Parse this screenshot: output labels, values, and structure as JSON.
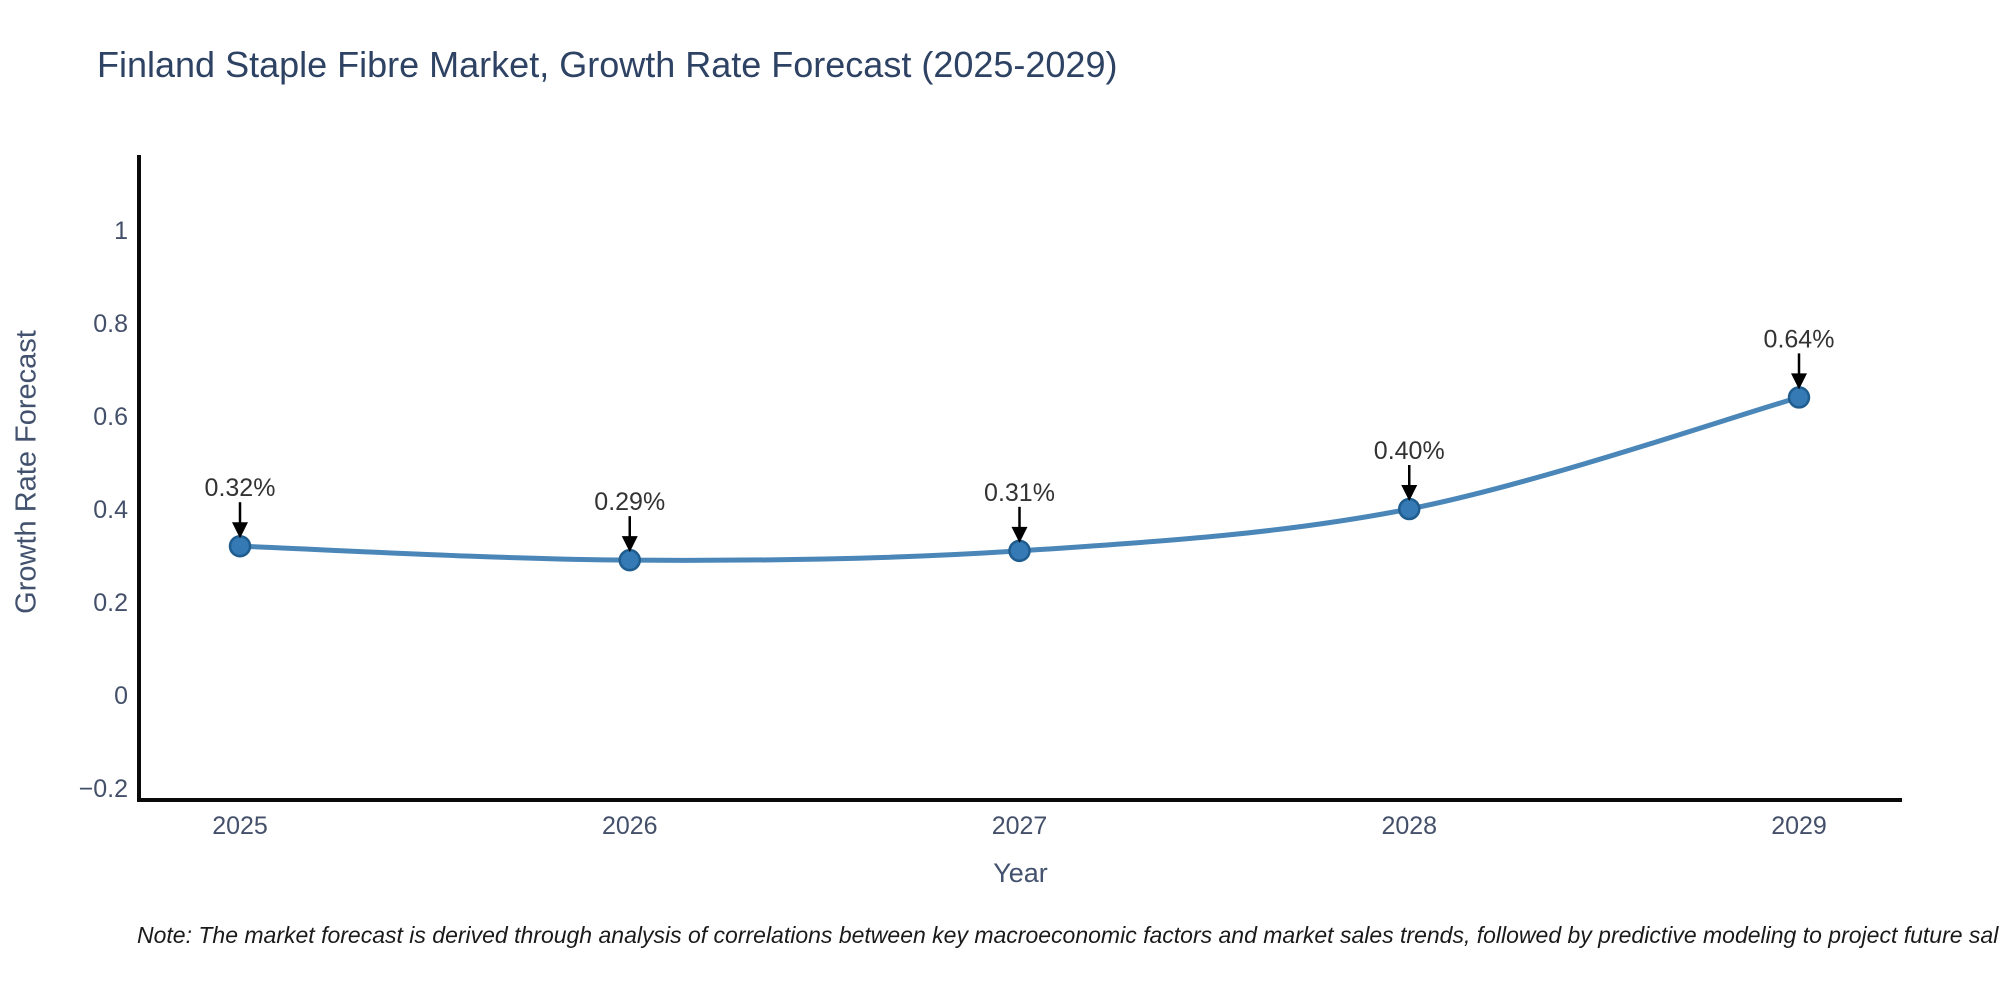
{
  "title": "Finland Staple Fibre Market, Growth Rate Forecast (2025-2029)",
  "note": "Note: The market forecast is derived through analysis of correlations between key macroeconomic factors and market sales trends, followed by predictive modeling to project future sal",
  "chart_data": {
    "type": "line",
    "title": "Finland Staple Fibre Market, Growth Rate Forecast (2025-2029)",
    "categories": [
      "2025",
      "2026",
      "2027",
      "2028",
      "2029"
    ],
    "series": [
      {
        "name": "Growth Rate Forecast",
        "values": [
          0.32,
          0.29,
          0.31,
          0.4,
          0.64
        ],
        "point_labels": [
          "0.32%",
          "0.29%",
          "0.31%",
          "0.40%",
          "0.64%"
        ]
      }
    ],
    "xlabel": "Year",
    "ylabel": "Growth Rate Forecast",
    "yticks": {
      "labels": [
        "−0.2",
        "0",
        "0.2",
        "0.4",
        "0.6",
        "0.8",
        "1"
      ],
      "values": [
        -0.2,
        0,
        0.2,
        0.4,
        0.6,
        0.8,
        1
      ]
    },
    "ylim": [
      -0.23,
      1.16
    ],
    "grid": false,
    "legend": false,
    "line_style": "smooth",
    "annotation_arrows": true,
    "colors": {
      "line": "#4a86b8",
      "marker_fill": "#3579b5",
      "marker_edge": "#1f5d8f",
      "annotation_text": "#333333",
      "arrow": "#000000",
      "axis_line": "#0a0a0a",
      "tick_label": "#44506a",
      "axis_title": "#42516d",
      "title": "#2e4263"
    }
  }
}
